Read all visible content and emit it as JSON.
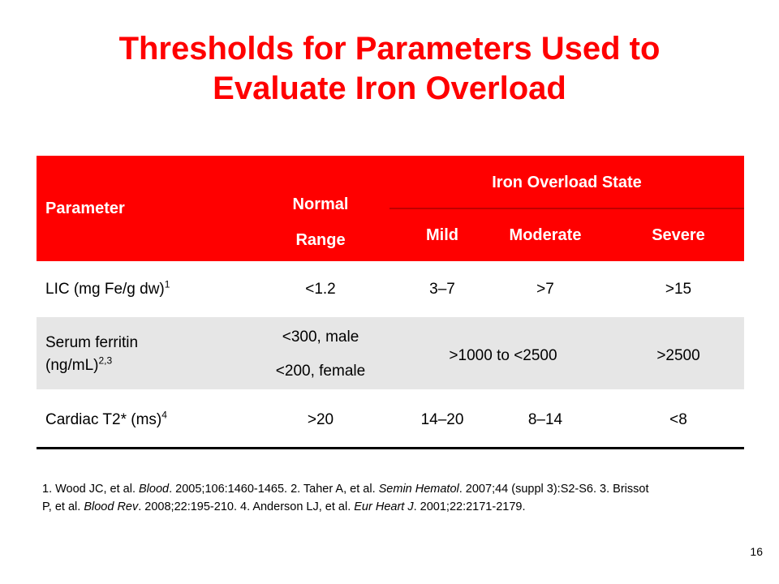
{
  "title": {
    "line1": "Thresholds for Parameters Used to",
    "line2": "Evaluate Iron Overload"
  },
  "table": {
    "headers": {
      "parameter": "Parameter",
      "normal_line1": "Normal",
      "normal_line2": "Range",
      "iron_state": "Iron Overload State",
      "mild": "Mild",
      "moderate": "Moderate",
      "severe": "Severe"
    },
    "rows": [
      {
        "param": "LIC (mg Fe/g dw)",
        "sup": "1",
        "normal": "<1.2",
        "mild": "3–7",
        "moderate": ">7",
        "severe": ">15"
      },
      {
        "param_line1": "Serum ferritin",
        "param_line2": "(ng/mL)",
        "sup": "2,3",
        "normal_line1": "<300, male",
        "normal_line2": "<200, female",
        "mild_moderate": ">1000 to <2500",
        "severe": ">2500"
      },
      {
        "param": "Cardiac T2* (ms)",
        "sup": "4",
        "normal": ">20",
        "mild": "14–20",
        "moderate": "8–14",
        "severe": "<8"
      }
    ]
  },
  "references": {
    "r1_pre": "1. Wood JC, et al. ",
    "r1_journal": "Blood",
    "r1_post": ". 2005;106:1460-1465.  2. Taher A, et al. ",
    "r2_journal": "Semin Hematol",
    "r2_post": ". 2007;44 (suppl 3):S2-S6. 3. Brissot P, et al. ",
    "r3_journal": "Blood Rev",
    "r3_post": ". 2008;22:195-210. 4. Anderson LJ, et al. ",
    "r4_journal": "Eur Heart J",
    "r4_post": ". 2001;22:2171-2179."
  },
  "page_number": "16",
  "colors": {
    "title": "#ff0000",
    "header_bg": "#ff0000",
    "header_text": "#ffffff",
    "row_shade": "#e6e6e6"
  }
}
